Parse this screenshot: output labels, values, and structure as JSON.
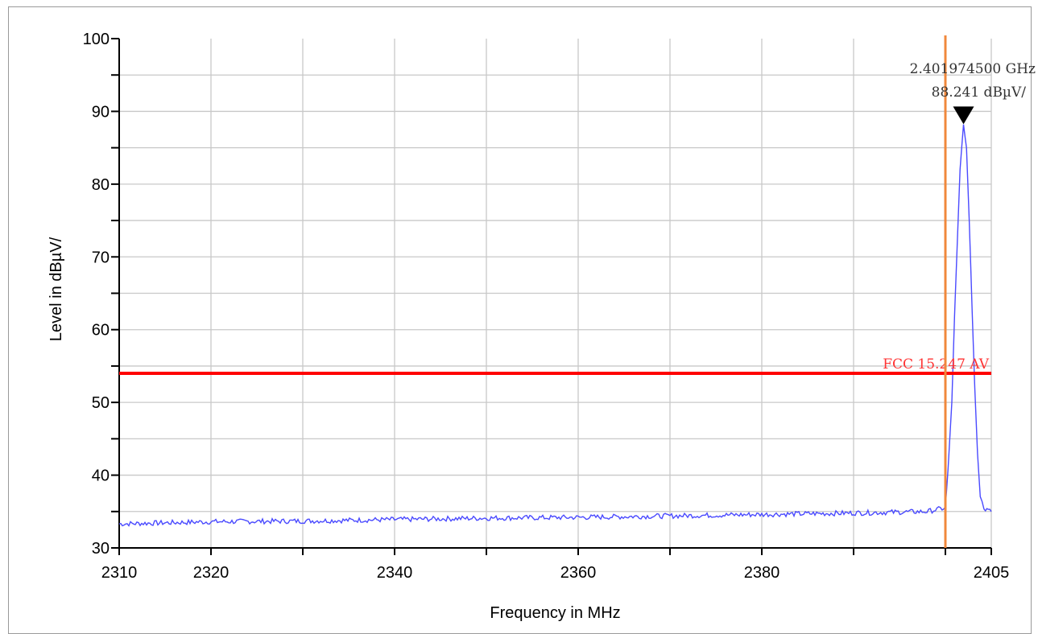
{
  "chart_data": {
    "type": "line",
    "xlabel": "Frequency in MHz",
    "ylabel": "Level in dBµV/",
    "xlim": [
      2310,
      2405
    ],
    "ylim": [
      30,
      100
    ],
    "x_ticks": [
      2310,
      2320,
      2340,
      2360,
      2380,
      2405
    ],
    "x_gridlines": [
      2320,
      2330,
      2340,
      2350,
      2360,
      2370,
      2380,
      2390,
      2400
    ],
    "y_ticks": [
      30,
      40,
      50,
      60,
      70,
      80,
      90,
      100
    ],
    "grid": true,
    "series": [
      {
        "color": "#4a4aff",
        "x": [
          2310,
          2320,
          2330,
          2340,
          2350,
          2360,
          2370,
          2380,
          2390,
          2398,
          2400,
          2400.3,
          2400.7,
          2401.0,
          2401.3,
          2401.6,
          2401.97,
          2402.3,
          2402.6,
          2402.9,
          2403.2,
          2403.5,
          2403.8,
          2404.2,
          2405
        ],
        "y": [
          33.3,
          33.6,
          33.7,
          33.9,
          34.1,
          34.2,
          34.4,
          34.6,
          34.8,
          35.0,
          35.5,
          41,
          50,
          62,
          72,
          82,
          88.2,
          85,
          75,
          63,
          52,
          43,
          37,
          35.3,
          35.0
        ]
      }
    ],
    "limit_line": {
      "label": "FCC 15.247 AV",
      "y": 54,
      "color": "#ff0000"
    },
    "vertical_line": {
      "x": 2400,
      "color": "#f0883c"
    },
    "marker": {
      "x": 2401.9745,
      "y": 88.241,
      "label_freq": "2.401974500 GHz",
      "label_level": "88.241 dBµV/"
    }
  }
}
